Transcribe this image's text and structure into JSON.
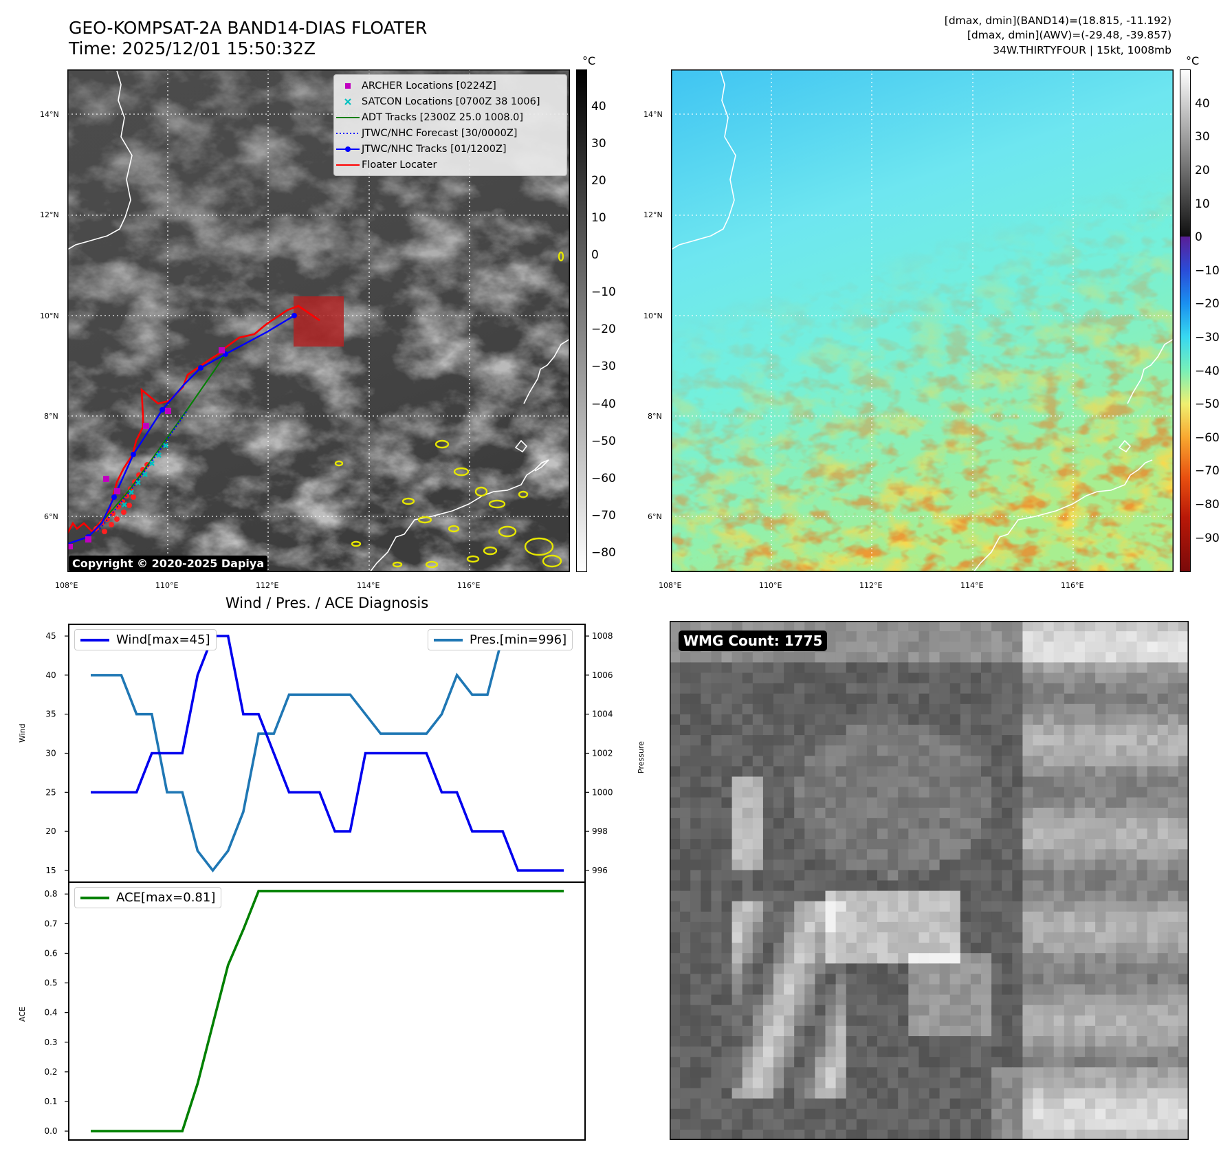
{
  "header": {
    "title_line1": "GEO-KOMPSAT-2A BAND14-DIAS FLOATER",
    "title_line2": "Time: 2025/12/01 15:50:32Z",
    "info_line1": "[dmax, dmin](BAND14)=(18.815, -11.192)",
    "info_line2": "[dmax, dmin](AWV)=(-29.48, -39.857)",
    "info_line3": "34W.THIRTYFOUR | 15kt, 1008mb"
  },
  "ir_map": {
    "lon_ticks": [
      "108°E",
      "110°E",
      "112°E",
      "114°E",
      "116°E"
    ],
    "lat_ticks": [
      "6°N",
      "8°N",
      "10°N",
      "12°N",
      "14°N"
    ],
    "lon_range": [
      108,
      118
    ],
    "lat_range": [
      5,
      15
    ],
    "colorbar_unit": "°C",
    "colorbar_ticks": [
      "40",
      "30",
      "20",
      "10",
      "0",
      "−10",
      "−20",
      "−30",
      "−40",
      "−50",
      "−60",
      "−70",
      "−80"
    ],
    "colorbar_range": [
      -85,
      50
    ],
    "copyright": "Copyright © 2020-2025 Dapiya",
    "legend": [
      {
        "label": "ARCHER Locations [0224Z]",
        "color": "#c000c0",
        "marker": "square"
      },
      {
        "label": "SATCON Locations [0700Z 38 1006]",
        "color": "#00c0c0",
        "marker": "x"
      },
      {
        "label": "ADT Tracks [2300Z 25.0 1008.0]",
        "color": "#008000",
        "marker": "line"
      },
      {
        "label": "JTWC/NHC Forecast [30/0000Z]",
        "color": "#0000ff",
        "marker": "dotted"
      },
      {
        "label": "JTWC/NHC Tracks [01/1200Z]",
        "color": "#0000ff",
        "marker": "line-dot"
      },
      {
        "label": "Floater Locater",
        "color": "#ff0000",
        "marker": "line"
      }
    ]
  },
  "awv_map": {
    "lon_ticks": [
      "108°E",
      "110°E",
      "112°E",
      "114°E",
      "116°E"
    ],
    "lat_ticks": [
      "6°N",
      "8°N",
      "10°N",
      "12°N",
      "14°N"
    ],
    "colorbar_unit": "°C",
    "colorbar_ticks": [
      "40",
      "30",
      "20",
      "10",
      "0",
      "−10",
      "−20",
      "−30",
      "−40",
      "−50",
      "−60",
      "−70",
      "−80",
      "−90"
    ],
    "colorbar_range": [
      -100,
      50
    ]
  },
  "diagnosis": {
    "title": "Wind / Pres. / ACE Diagnosis",
    "wind_ylabel": "Wind",
    "pres_ylabel": "Pressure",
    "ace_ylabel": "ACE",
    "wind_legend": "Wind[max=45]",
    "pres_legend": "Pres.[min=996]",
    "ace_legend": "ACE[max=0.81]",
    "wind_yticks": [
      "15",
      "20",
      "25",
      "30",
      "35",
      "40",
      "45"
    ],
    "pres_yticks": [
      "996",
      "998",
      "1000",
      "1002",
      "1004",
      "1006",
      "1008"
    ],
    "ace_yticks": [
      "0.0",
      "0.1",
      "0.2",
      "0.3",
      "0.4",
      "0.5",
      "0.6",
      "0.7",
      "0.8"
    ]
  },
  "wmg": {
    "label": "WMG Count: 1775"
  },
  "chart_data": [
    {
      "type": "line",
      "title": "Wind / Pres. / ACE Diagnosis",
      "ylabel": "Wind",
      "ylim": [
        13.5,
        46.5
      ],
      "series": [
        {
          "name": "Wind[max=45]",
          "color": "#0000ee",
          "values": [
            25,
            25,
            25,
            25,
            30,
            30,
            30,
            40,
            45,
            45,
            35,
            35,
            30,
            25,
            25,
            25,
            20,
            20,
            30,
            30,
            30,
            30,
            30,
            25,
            25,
            20,
            20,
            20,
            15,
            15,
            15,
            15
          ]
        }
      ]
    },
    {
      "type": "line",
      "ylabel": "Pressure",
      "ylim": [
        995.4,
        1008.6
      ],
      "series": [
        {
          "name": "Pres.[min=996]",
          "color": "#1f77b4",
          "values": [
            1006,
            1006,
            1006,
            1004,
            1004,
            1000,
            1000,
            997,
            996,
            997,
            999,
            1003,
            1003,
            1005,
            1005,
            1005,
            1005,
            1005,
            1004,
            1003,
            1003,
            1003,
            1003,
            1004,
            1006,
            1005,
            1005,
            1008,
            1008,
            1008,
            1008,
            1008
          ]
        }
      ]
    },
    {
      "type": "line",
      "ylabel": "ACE",
      "ylim": [
        -0.03,
        0.84
      ],
      "series": [
        {
          "name": "ACE[max=0.81]",
          "color": "#008000",
          "values": [
            0,
            0,
            0,
            0,
            0,
            0,
            0,
            0.16,
            0.36,
            0.56,
            0.68,
            0.81,
            0.81,
            0.81,
            0.81,
            0.81,
            0.81,
            0.81,
            0.81,
            0.81,
            0.81,
            0.81,
            0.81,
            0.81,
            0.81,
            0.81,
            0.81,
            0.81,
            0.81,
            0.81,
            0.81,
            0.81
          ]
        }
      ]
    }
  ]
}
